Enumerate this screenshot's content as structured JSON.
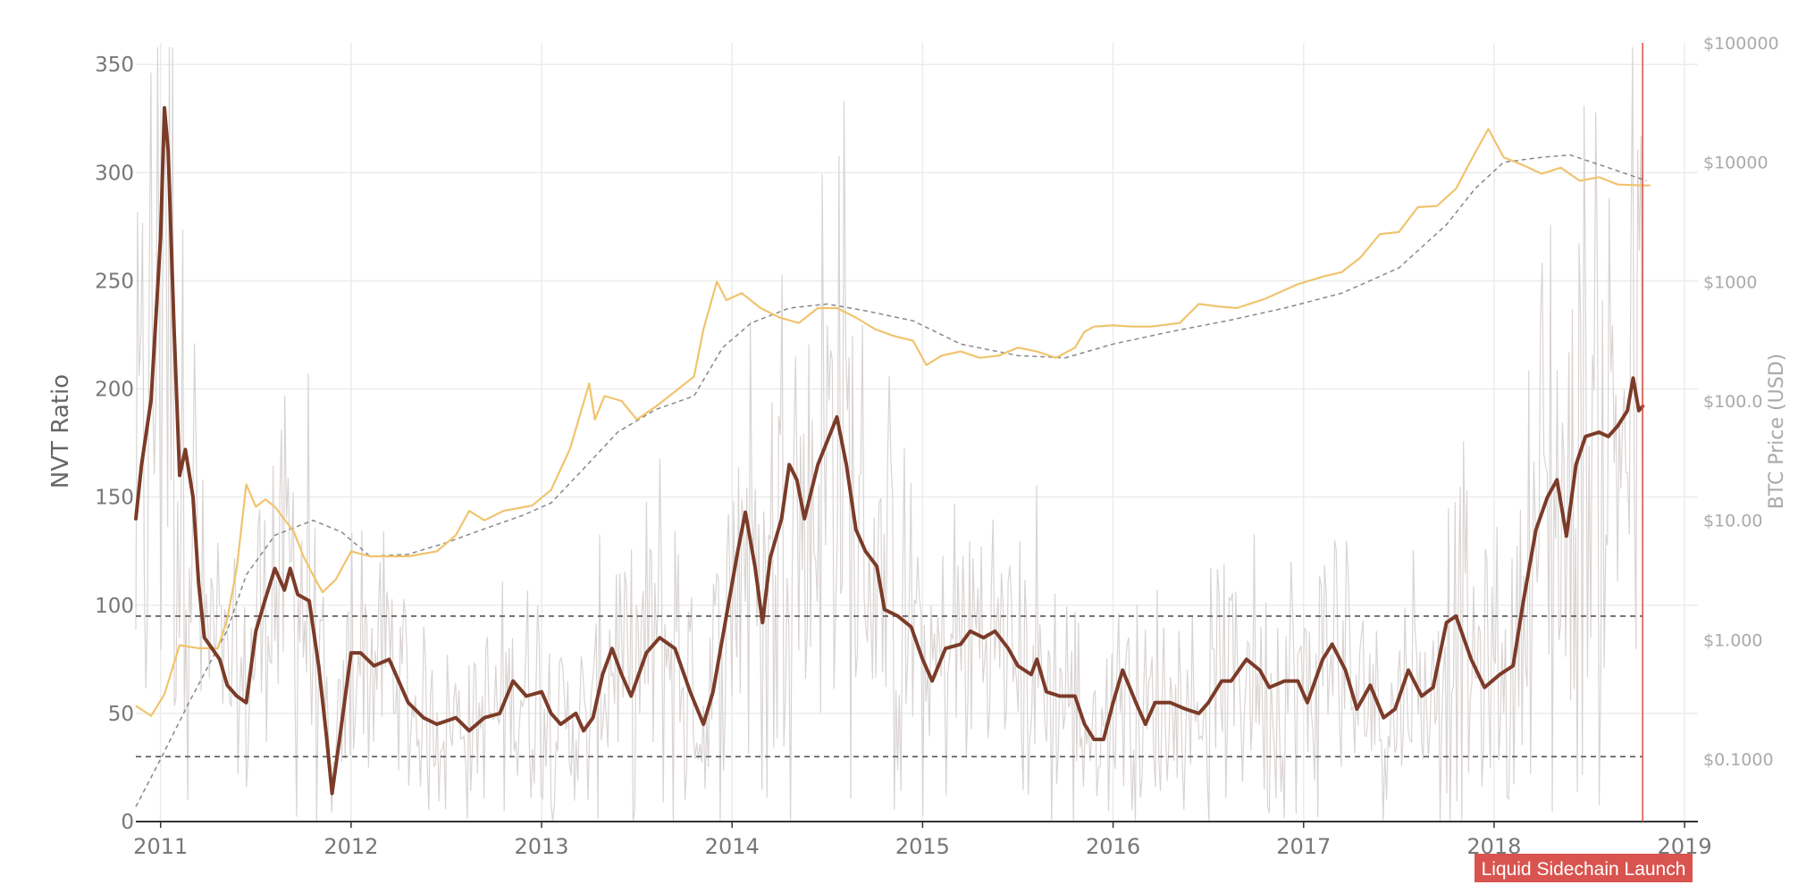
{
  "chart_data": {
    "type": "line",
    "title": "",
    "ylabel": "NVT Ratio",
    "y2label": "BTC Price (USD)",
    "x_range": [
      2010.87,
      2019.07
    ],
    "ylim": [
      0,
      360
    ],
    "y2lim_log": [
      0.03,
      100000
    ],
    "y2_scale": "log",
    "grid": true,
    "x_ticks": [
      {
        "value": 2011,
        "label": "2011"
      },
      {
        "value": 2012,
        "label": "2012"
      },
      {
        "value": 2013,
        "label": "2013"
      },
      {
        "value": 2014,
        "label": "2014"
      },
      {
        "value": 2015,
        "label": "2015"
      },
      {
        "value": 2016,
        "label": "2016"
      },
      {
        "value": 2017,
        "label": "2017"
      },
      {
        "value": 2018,
        "label": "2018"
      },
      {
        "value": 2019,
        "label": "2019"
      }
    ],
    "y_ticks": [
      {
        "value": 0,
        "label": "0"
      },
      {
        "value": 50,
        "label": "50"
      },
      {
        "value": 100,
        "label": "100"
      },
      {
        "value": 150,
        "label": "150"
      },
      {
        "value": 200,
        "label": "200"
      },
      {
        "value": 250,
        "label": "250"
      },
      {
        "value": 300,
        "label": "300"
      },
      {
        "value": 350,
        "label": "350"
      }
    ],
    "y2_ticks": [
      {
        "value": 0.1,
        "label": "$0.1000"
      },
      {
        "value": 1,
        "label": "$1.000"
      },
      {
        "value": 10,
        "label": "$10.00"
      },
      {
        "value": 100,
        "label": "$100.0"
      },
      {
        "value": 1000,
        "label": "$1000"
      },
      {
        "value": 10000,
        "label": "$10000"
      },
      {
        "value": 100000,
        "label": "$100000"
      }
    ],
    "thresholds": [
      95,
      30
    ],
    "vertical_marker": {
      "x": 2018.78,
      "label": "Liquid Sidechain Launch"
    },
    "colors": {
      "nvt_smoothed": "#7b3b28",
      "nvt_raw": "#d9d4d2",
      "price": "#f0c46e",
      "price_ma": "#888888",
      "threshold": "#555555",
      "marker": "#e05a4e",
      "marker_label_bg": "#d9534f"
    },
    "series": [
      {
        "key": "nvt_smoothed",
        "axis": "left",
        "points": [
          [
            2010.87,
            140
          ],
          [
            2010.9,
            165
          ],
          [
            2010.95,
            195
          ],
          [
            2011.0,
            270
          ],
          [
            2011.02,
            330
          ],
          [
            2011.04,
            310
          ],
          [
            2011.07,
            230
          ],
          [
            2011.1,
            160
          ],
          [
            2011.13,
            172
          ],
          [
            2011.17,
            150
          ],
          [
            2011.2,
            110
          ],
          [
            2011.23,
            85
          ],
          [
            2011.27,
            80
          ],
          [
            2011.31,
            75
          ],
          [
            2011.35,
            63
          ],
          [
            2011.4,
            58
          ],
          [
            2011.45,
            55
          ],
          [
            2011.5,
            88
          ],
          [
            2011.55,
            103
          ],
          [
            2011.6,
            117
          ],
          [
            2011.65,
            107
          ],
          [
            2011.68,
            117
          ],
          [
            2011.72,
            105
          ],
          [
            2011.78,
            102
          ],
          [
            2011.83,
            72
          ],
          [
            2011.87,
            40
          ],
          [
            2011.9,
            13
          ],
          [
            2011.95,
            45
          ],
          [
            2012.0,
            78
          ],
          [
            2012.05,
            78
          ],
          [
            2012.12,
            72
          ],
          [
            2012.2,
            75
          ],
          [
            2012.3,
            55
          ],
          [
            2012.38,
            48
          ],
          [
            2012.45,
            45
          ],
          [
            2012.55,
            48
          ],
          [
            2012.62,
            42
          ],
          [
            2012.7,
            48
          ],
          [
            2012.78,
            50
          ],
          [
            2012.85,
            65
          ],
          [
            2012.92,
            58
          ],
          [
            2013.0,
            60
          ],
          [
            2013.05,
            50
          ],
          [
            2013.1,
            45
          ],
          [
            2013.18,
            50
          ],
          [
            2013.22,
            42
          ],
          [
            2013.27,
            48
          ],
          [
            2013.32,
            68
          ],
          [
            2013.37,
            80
          ],
          [
            2013.42,
            68
          ],
          [
            2013.47,
            58
          ],
          [
            2013.55,
            78
          ],
          [
            2013.62,
            85
          ],
          [
            2013.7,
            80
          ],
          [
            2013.78,
            60
          ],
          [
            2013.85,
            45
          ],
          [
            2013.9,
            60
          ],
          [
            2013.97,
            95
          ],
          [
            2014.03,
            125
          ],
          [
            2014.07,
            143
          ],
          [
            2014.12,
            118
          ],
          [
            2014.16,
            92
          ],
          [
            2014.2,
            122
          ],
          [
            2014.26,
            140
          ],
          [
            2014.3,
            165
          ],
          [
            2014.34,
            158
          ],
          [
            2014.38,
            140
          ],
          [
            2014.45,
            165
          ],
          [
            2014.55,
            187
          ],
          [
            2014.6,
            165
          ],
          [
            2014.65,
            135
          ],
          [
            2014.7,
            125
          ],
          [
            2014.76,
            118
          ],
          [
            2014.8,
            98
          ],
          [
            2014.87,
            95
          ],
          [
            2014.94,
            90
          ],
          [
            2015.0,
            75
          ],
          [
            2015.05,
            65
          ],
          [
            2015.12,
            80
          ],
          [
            2015.2,
            82
          ],
          [
            2015.25,
            88
          ],
          [
            2015.32,
            85
          ],
          [
            2015.38,
            88
          ],
          [
            2015.45,
            80
          ],
          [
            2015.5,
            72
          ],
          [
            2015.57,
            68
          ],
          [
            2015.6,
            75
          ],
          [
            2015.65,
            60
          ],
          [
            2015.72,
            58
          ],
          [
            2015.8,
            58
          ],
          [
            2015.85,
            45
          ],
          [
            2015.9,
            38
          ],
          [
            2015.95,
            38
          ],
          [
            2016.0,
            55
          ],
          [
            2016.05,
            70
          ],
          [
            2016.12,
            55
          ],
          [
            2016.17,
            45
          ],
          [
            2016.22,
            55
          ],
          [
            2016.3,
            55
          ],
          [
            2016.38,
            52
          ],
          [
            2016.45,
            50
          ],
          [
            2016.5,
            55
          ],
          [
            2016.57,
            65
          ],
          [
            2016.62,
            65
          ],
          [
            2016.7,
            75
          ],
          [
            2016.77,
            70
          ],
          [
            2016.82,
            62
          ],
          [
            2016.9,
            65
          ],
          [
            2016.97,
            65
          ],
          [
            2017.02,
            55
          ],
          [
            2017.1,
            75
          ],
          [
            2017.15,
            82
          ],
          [
            2017.22,
            70
          ],
          [
            2017.28,
            52
          ],
          [
            2017.35,
            63
          ],
          [
            2017.42,
            48
          ],
          [
            2017.48,
            52
          ],
          [
            2017.55,
            70
          ],
          [
            2017.62,
            58
          ],
          [
            2017.68,
            62
          ],
          [
            2017.75,
            92
          ],
          [
            2017.8,
            95
          ],
          [
            2017.88,
            75
          ],
          [
            2017.95,
            62
          ],
          [
            2018.03,
            68
          ],
          [
            2018.1,
            72
          ],
          [
            2018.15,
            100
          ],
          [
            2018.22,
            135
          ],
          [
            2018.28,
            150
          ],
          [
            2018.33,
            158
          ],
          [
            2018.38,
            132
          ],
          [
            2018.43,
            165
          ],
          [
            2018.48,
            178
          ],
          [
            2018.55,
            180
          ],
          [
            2018.6,
            178
          ],
          [
            2018.65,
            183
          ],
          [
            2018.7,
            190
          ],
          [
            2018.73,
            205
          ],
          [
            2018.76,
            190
          ],
          [
            2018.78,
            192
          ]
        ]
      },
      {
        "key": "price",
        "axis": "right",
        "points": [
          [
            2010.87,
            0.28
          ],
          [
            2010.95,
            0.23
          ],
          [
            2011.02,
            0.35
          ],
          [
            2011.1,
            0.9
          ],
          [
            2011.2,
            0.85
          ],
          [
            2011.3,
            0.85
          ],
          [
            2011.35,
            1.5
          ],
          [
            2011.4,
            4
          ],
          [
            2011.45,
            20
          ],
          [
            2011.5,
            13
          ],
          [
            2011.55,
            15
          ],
          [
            2011.6,
            13
          ],
          [
            2011.7,
            8
          ],
          [
            2011.75,
            5
          ],
          [
            2011.8,
            3.5
          ],
          [
            2011.85,
            2.5
          ],
          [
            2011.92,
            3.2
          ],
          [
            2012.0,
            5.5
          ],
          [
            2012.1,
            5.0
          ],
          [
            2012.2,
            5.0
          ],
          [
            2012.3,
            5
          ],
          [
            2012.45,
            5.5
          ],
          [
            2012.55,
            7.5
          ],
          [
            2012.62,
            12
          ],
          [
            2012.7,
            10
          ],
          [
            2012.8,
            12
          ],
          [
            2012.95,
            13.3
          ],
          [
            2013.05,
            18
          ],
          [
            2013.15,
            40
          ],
          [
            2013.25,
            140
          ],
          [
            2013.28,
            70
          ],
          [
            2013.33,
            110
          ],
          [
            2013.42,
            100
          ],
          [
            2013.5,
            70
          ],
          [
            2013.6,
            90
          ],
          [
            2013.7,
            120
          ],
          [
            2013.8,
            160
          ],
          [
            2013.85,
            400
          ],
          [
            2013.92,
            1000
          ],
          [
            2013.97,
            700
          ],
          [
            2014.05,
            800
          ],
          [
            2014.15,
            600
          ],
          [
            2014.25,
            500
          ],
          [
            2014.35,
            450
          ],
          [
            2014.45,
            600
          ],
          [
            2014.55,
            600
          ],
          [
            2014.65,
            500
          ],
          [
            2014.75,
            400
          ],
          [
            2014.85,
            350
          ],
          [
            2014.95,
            320
          ],
          [
            2015.02,
            200
          ],
          [
            2015.1,
            240
          ],
          [
            2015.2,
            260
          ],
          [
            2015.3,
            230
          ],
          [
            2015.4,
            240
          ],
          [
            2015.5,
            280
          ],
          [
            2015.6,
            260
          ],
          [
            2015.7,
            230
          ],
          [
            2015.8,
            280
          ],
          [
            2015.85,
            380
          ],
          [
            2015.9,
            420
          ],
          [
            2016.0,
            430
          ],
          [
            2016.1,
            420
          ],
          [
            2016.2,
            420
          ],
          [
            2016.35,
            450
          ],
          [
            2016.45,
            650
          ],
          [
            2016.55,
            620
          ],
          [
            2016.65,
            600
          ],
          [
            2016.8,
            720
          ],
          [
            2016.97,
            950
          ],
          [
            2017.1,
            1100
          ],
          [
            2017.2,
            1200
          ],
          [
            2017.3,
            1600
          ],
          [
            2017.4,
            2500
          ],
          [
            2017.5,
            2600
          ],
          [
            2017.6,
            4200
          ],
          [
            2017.7,
            4300
          ],
          [
            2017.8,
            6000
          ],
          [
            2017.9,
            12000
          ],
          [
            2017.97,
            19000
          ],
          [
            2018.05,
            11000
          ],
          [
            2018.15,
            9500
          ],
          [
            2018.25,
            8000
          ],
          [
            2018.35,
            9000
          ],
          [
            2018.45,
            7000
          ],
          [
            2018.55,
            7500
          ],
          [
            2018.65,
            6500
          ],
          [
            2018.78,
            6400
          ],
          [
            2018.82,
            6400
          ]
        ]
      },
      {
        "key": "price_ma",
        "axis": "right",
        "points": [
          [
            2010.87,
            0.04
          ],
          [
            2011.0,
            0.1
          ],
          [
            2011.15,
            0.3
          ],
          [
            2011.35,
            1.2
          ],
          [
            2011.45,
            3.5
          ],
          [
            2011.6,
            7.5
          ],
          [
            2011.8,
            10
          ],
          [
            2011.95,
            8
          ],
          [
            2012.1,
            5
          ],
          [
            2012.3,
            5.2
          ],
          [
            2012.5,
            6.5
          ],
          [
            2012.7,
            8.5
          ],
          [
            2012.9,
            11
          ],
          [
            2013.05,
            14
          ],
          [
            2013.2,
            25
          ],
          [
            2013.4,
            55
          ],
          [
            2013.6,
            85
          ],
          [
            2013.8,
            110
          ],
          [
            2013.95,
            280
          ],
          [
            2014.1,
            450
          ],
          [
            2014.3,
            600
          ],
          [
            2014.5,
            650
          ],
          [
            2014.7,
            570
          ],
          [
            2014.95,
            470
          ],
          [
            2015.2,
            300
          ],
          [
            2015.5,
            240
          ],
          [
            2015.75,
            230
          ],
          [
            2016.0,
            300
          ],
          [
            2016.3,
            380
          ],
          [
            2016.6,
            470
          ],
          [
            2016.9,
            600
          ],
          [
            2017.2,
            800
          ],
          [
            2017.5,
            1300
          ],
          [
            2017.75,
            3000
          ],
          [
            2017.9,
            6000
          ],
          [
            2018.05,
            10000
          ],
          [
            2018.25,
            11000
          ],
          [
            2018.4,
            11500
          ],
          [
            2018.6,
            9000
          ],
          [
            2018.8,
            7000
          ]
        ]
      }
    ]
  }
}
